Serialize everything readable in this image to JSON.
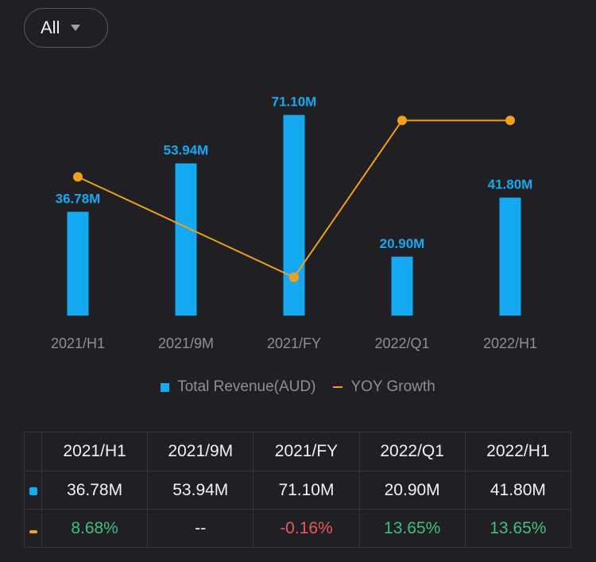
{
  "filter": {
    "label": "All"
  },
  "colors": {
    "bar": "#14a9f0",
    "line": "#f29f1c",
    "positive": "#3fbf7f",
    "negative": "#e85a5a"
  },
  "chart_data": {
    "type": "bar",
    "categories": [
      "2021/H1",
      "2021/9M",
      "2021/FY",
      "2022/Q1",
      "2022/H1"
    ],
    "series": [
      {
        "name": "Total Revenue(AUD)",
        "type": "bar",
        "values": [
          36.78,
          53.94,
          71.1,
          20.9,
          41.8
        ],
        "labels": [
          "36.78M",
          "53.94M",
          "71.10M",
          "20.90M",
          "41.80M"
        ]
      },
      {
        "name": "YOY Growth",
        "type": "line",
        "values": [
          8.68,
          null,
          -0.16,
          13.65,
          13.65
        ]
      }
    ],
    "legend": [
      "Total Revenue(AUD)",
      "YOY Growth"
    ],
    "bar_ylim": [
      0,
      80
    ],
    "line_ylim": [
      -1.5,
      15.5
    ]
  },
  "table": {
    "headers": [
      "2021/H1",
      "2021/9M",
      "2021/FY",
      "2022/Q1",
      "2022/H1"
    ],
    "revenue": [
      "36.78M",
      "53.94M",
      "71.10M",
      "20.90M",
      "41.80M"
    ],
    "growth": [
      {
        "text": "8.68%",
        "tone": "pos"
      },
      {
        "text": "--",
        "tone": "neu"
      },
      {
        "text": "-0.16%",
        "tone": "neg"
      },
      {
        "text": "13.65%",
        "tone": "pos"
      },
      {
        "text": "13.65%",
        "tone": "pos"
      }
    ]
  }
}
